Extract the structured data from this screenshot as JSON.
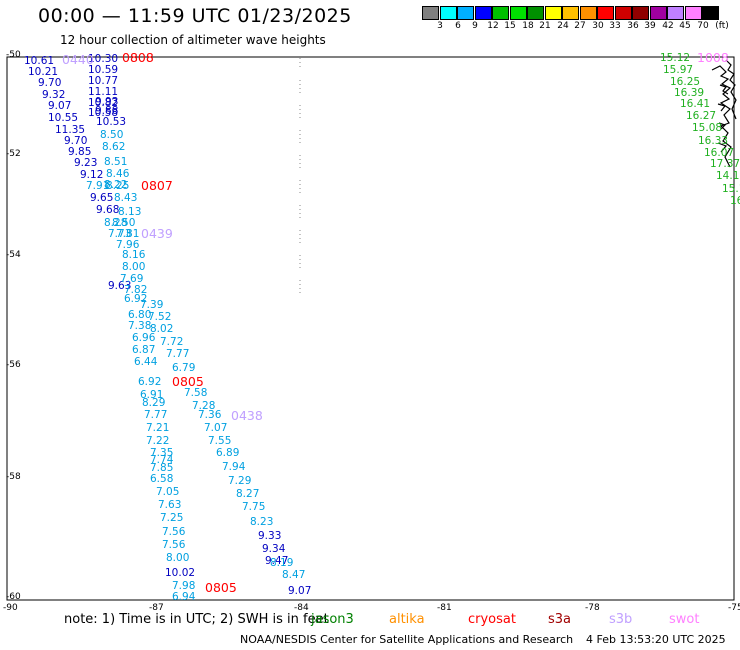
{
  "title": "00:00 — 11:59 UTC 01/23/2025",
  "subtitle": "12 hour collection of altimeter wave heights",
  "colorbar": {
    "colors": [
      "#808080",
      "#00ffff",
      "#00b0ff",
      "#0000ff",
      "#00c000",
      "#00e000",
      "#009000",
      "#ffff00",
      "#ffc000",
      "#ff9000",
      "#ff0000",
      "#d00000",
      "#900000",
      "#a000a0",
      "#c080ff",
      "#ff80ff",
      "#000000"
    ],
    "labels": [
      "3",
      "6",
      "9",
      "12",
      "15",
      "18",
      "21",
      "24",
      "27",
      "30",
      "33",
      "36",
      "39",
      "42",
      "45",
      "70",
      "(ft)"
    ]
  },
  "axes": {
    "lat_labels": [
      "-50",
      "-52",
      "-54",
      "-56",
      "-58",
      "-60"
    ],
    "lon_labels": [
      "-90",
      "-87",
      "-84",
      "-81",
      "-78",
      "-75"
    ]
  },
  "passes": [
    {
      "text": "0808",
      "color": "#ff0000"
    },
    {
      "text": "0807",
      "color": "#ff0000"
    },
    {
      "text": "0439",
      "color": "#c0a0ff"
    },
    {
      "text": "0805",
      "color": "#ff0000"
    },
    {
      "text": "0438",
      "color": "#c0a0ff"
    },
    {
      "text": "0805",
      "color": "#ff0000"
    },
    {
      "text": "0440",
      "color": "#c0a0ff"
    },
    {
      "text": "1008",
      "color": "#ff80ff"
    }
  ],
  "track_labels": {
    "darkblue": [
      "10.61",
      "10.21",
      "9.70",
      "9.32",
      "9.07",
      "10.55",
      "11.35",
      "9.70",
      "9.85",
      "9.23",
      "9.12",
      "9.65",
      "9.68",
      "9.63",
      "10.30",
      "10.59",
      "10.77",
      "11.11",
      "10.82",
      "10.58",
      "9.93",
      "9.88",
      "10.53",
      "9.33",
      "9.34",
      "9.47",
      "9.07",
      "10.02"
    ],
    "cyan": [
      "7.91",
      "8.25",
      "8.43",
      "8.13",
      "8.28",
      "8.50",
      "7.73",
      "7.81",
      "7.96",
      "8.16",
      "8.00",
      "7.69",
      "7.82",
      "6.92",
      "7.39",
      "6.80",
      "7.52",
      "7.38",
      "8.02",
      "6.96",
      "7.72",
      "6.87",
      "7.77",
      "6.44",
      "6.79",
      "6.92",
      "7.58",
      "6.91",
      "7.28",
      "8.29",
      "7.36",
      "7.77",
      "7.07",
      "7.21",
      "7.55",
      "7.22",
      "6.89",
      "7.35",
      "7.94",
      "7.74",
      "7.85",
      "7.29",
      "6.58",
      "8.27",
      "7.05",
      "7.75",
      "7.63",
      "8.23",
      "7.25",
      "7.56",
      "7.56",
      "8.00",
      "8.19",
      "8.47",
      "7.98",
      "6.94",
      "8.51",
      "8.46",
      "8.22",
      "8.62",
      "8.50"
    ],
    "green": [
      "15.12",
      "15.97",
      "16.25",
      "16.39",
      "16.41",
      "16.27",
      "15.08",
      "16.33",
      "16.07",
      "17.37",
      "14.1",
      "15.1",
      "16"
    ]
  },
  "note": "note: 1) Time is in UTC; 2) SWH is in feet",
  "satellites": [
    {
      "name": "jason3",
      "color": "#008000"
    },
    {
      "name": "altika",
      "color": "#ff9000"
    },
    {
      "name": "cryosat",
      "color": "#ff0000"
    },
    {
      "name": "s3a",
      "color": "#a00000"
    },
    {
      "name": "s3b",
      "color": "#c0a0ff"
    },
    {
      "name": "swot",
      "color": "#ff80ff"
    }
  ],
  "credit": "NOAA/NESDIS Center for Satellite Applications and Research",
  "timestamp": "4 Feb 13:53:20 UTC 2025"
}
